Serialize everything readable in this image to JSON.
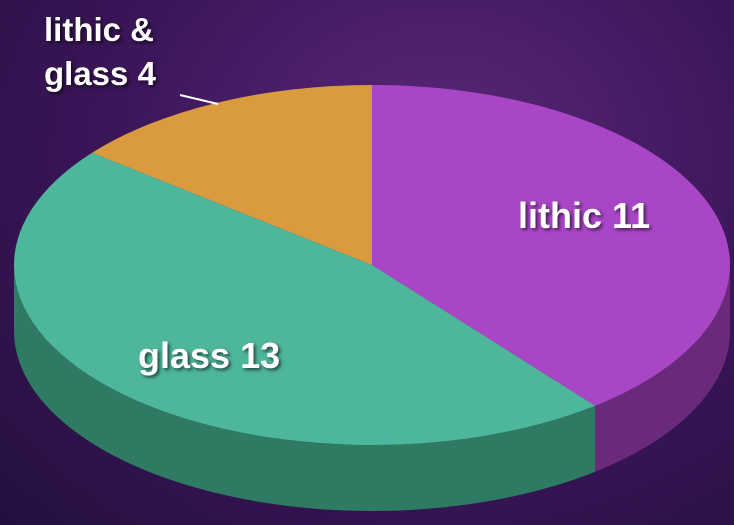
{
  "chart_data": {
    "type": "pie",
    "categories": [
      "lithic",
      "glass",
      "lithic & glass"
    ],
    "values": [
      11,
      13,
      4
    ],
    "colors": [
      "#a946c6",
      "#4db69b",
      "#d99b3d"
    ],
    "side_colors": [
      "#6a2a7c",
      "#2f7a63",
      "#8f6424"
    ]
  }
}
